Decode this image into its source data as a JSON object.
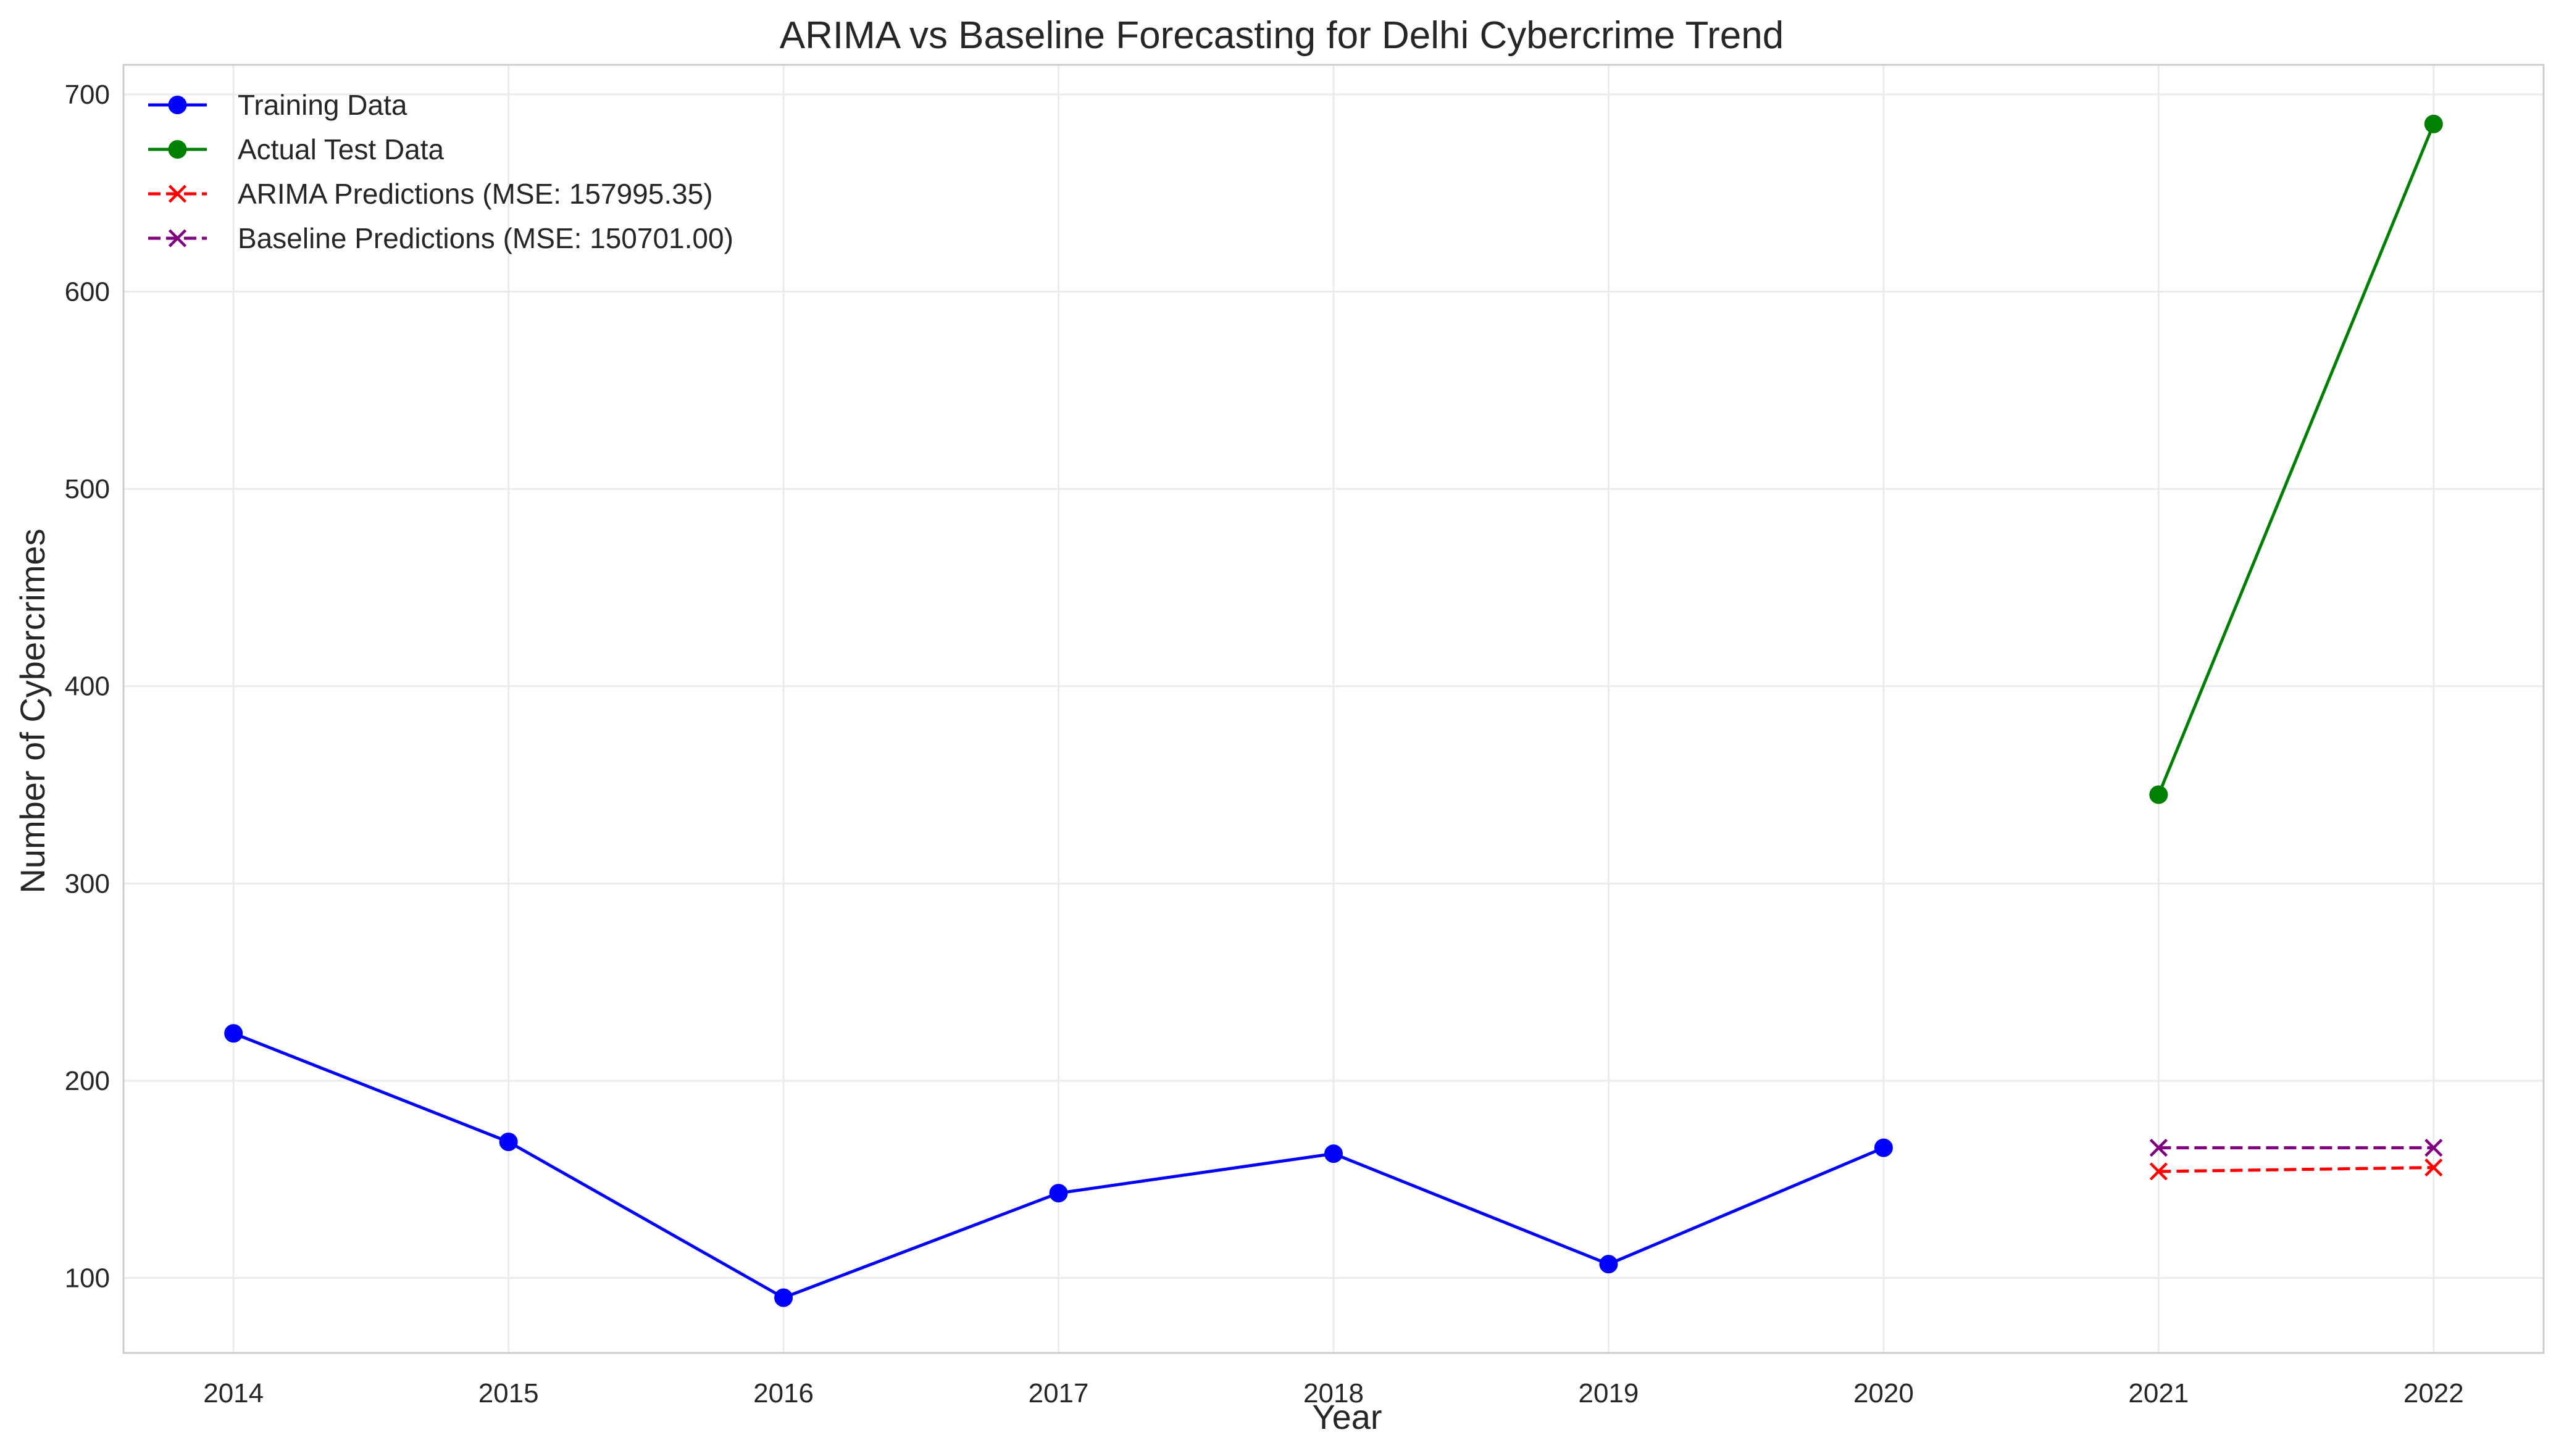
{
  "chart_data": {
    "type": "line",
    "title": "ARIMA vs Baseline Forecasting for Delhi Cybercrime Trend",
    "xlabel": "Year",
    "ylabel": "Number of Cybercrimes",
    "xlim": [
      2013.6,
      2022.4
    ],
    "ylim": [
      62,
      715
    ],
    "x_ticks": [
      2014,
      2015,
      2016,
      2017,
      2018,
      2019,
      2020,
      2021,
      2022
    ],
    "y_ticks": [
      100,
      200,
      300,
      400,
      500,
      600,
      700
    ],
    "grid": true,
    "legend_position": "top-left",
    "series": [
      {
        "name": "Training Data",
        "color": "#0000ff",
        "line_style": "solid",
        "marker": "circle",
        "x": [
          2014,
          2015,
          2016,
          2017,
          2018,
          2019,
          2020
        ],
        "y": [
          224,
          169,
          90,
          143,
          163,
          107,
          166
        ]
      },
      {
        "name": "Actual Test Data",
        "color": "#008000",
        "line_style": "solid",
        "marker": "circle",
        "x": [
          2021,
          2022
        ],
        "y": [
          345,
          685
        ]
      },
      {
        "name": "ARIMA Predictions (MSE: 157995.35)",
        "color": "#ff0000",
        "line_style": "dashed",
        "marker": "x",
        "x": [
          2021,
          2022
        ],
        "y": [
          154,
          156
        ]
      },
      {
        "name": "Baseline Predictions (MSE: 150701.00)",
        "color": "#800080",
        "line_style": "dashed",
        "marker": "x",
        "x": [
          2021,
          2022
        ],
        "y": [
          166,
          166
        ]
      }
    ]
  }
}
